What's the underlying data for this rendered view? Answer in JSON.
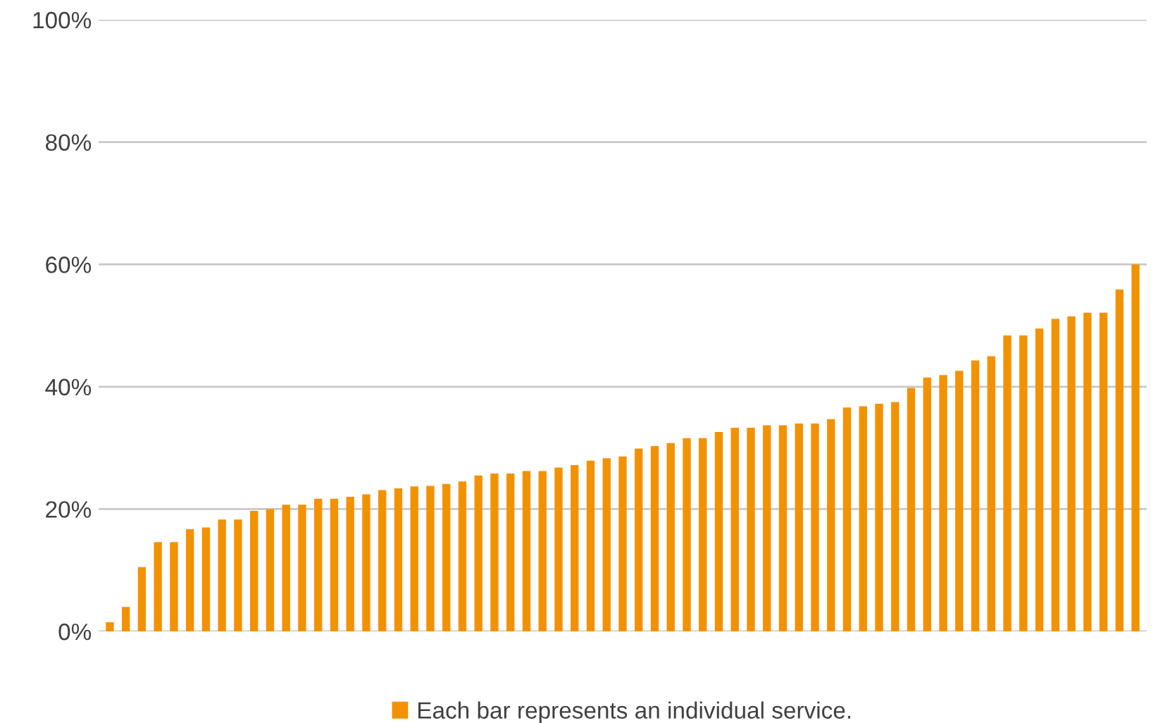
{
  "chart_data": {
    "type": "bar",
    "categories": [
      null,
      null,
      null,
      null,
      null,
      null,
      null,
      null,
      null,
      null,
      null,
      null,
      null,
      null,
      null,
      null,
      null,
      null,
      null,
      null,
      null,
      null,
      null,
      null,
      null,
      null,
      null,
      null,
      null,
      null,
      null,
      null,
      null,
      null,
      null,
      null,
      null,
      null,
      null,
      null,
      null,
      null,
      null,
      null,
      null,
      null,
      null,
      null,
      null,
      null,
      null,
      null,
      null,
      null,
      null,
      null,
      null,
      null,
      null,
      null,
      null,
      null,
      null,
      null,
      null
    ],
    "series": [
      {
        "name": "Each bar represents an individual service.",
        "color": "#f39200",
        "values": [
          1.5,
          4.0,
          10.5,
          14.6,
          14.6,
          16.7,
          17.0,
          18.3,
          18.3,
          19.7,
          20.0,
          20.7,
          20.7,
          21.7,
          21.7,
          22.0,
          22.4,
          23.1,
          23.4,
          23.7,
          23.8,
          24.1,
          24.5,
          25.5,
          25.8,
          25.8,
          26.2,
          26.2,
          26.8,
          27.2,
          27.9,
          28.3,
          28.6,
          29.9,
          30.3,
          30.8,
          31.6,
          31.6,
          32.6,
          33.3,
          33.3,
          33.7,
          33.7,
          34.0,
          34.0,
          34.7,
          36.6,
          36.8,
          37.2,
          37.5,
          39.8,
          41.5,
          41.9,
          42.6,
          44.3,
          45.0,
          48.4,
          48.4,
          49.5,
          51.1,
          51.5,
          52.1,
          52.1,
          55.9,
          60.0
        ]
      }
    ],
    "ylim": [
      0,
      100
    ],
    "yticks": [
      {
        "value": 0,
        "label": "0%"
      },
      {
        "value": 20,
        "label": "20%"
      },
      {
        "value": 40,
        "label": "40%"
      },
      {
        "value": 60,
        "label": "60%"
      },
      {
        "value": 80,
        "label": "80%"
      },
      {
        "value": 100,
        "label": "100%"
      }
    ],
    "grid": "y",
    "legend": "bottom",
    "tick_labels": "y"
  }
}
